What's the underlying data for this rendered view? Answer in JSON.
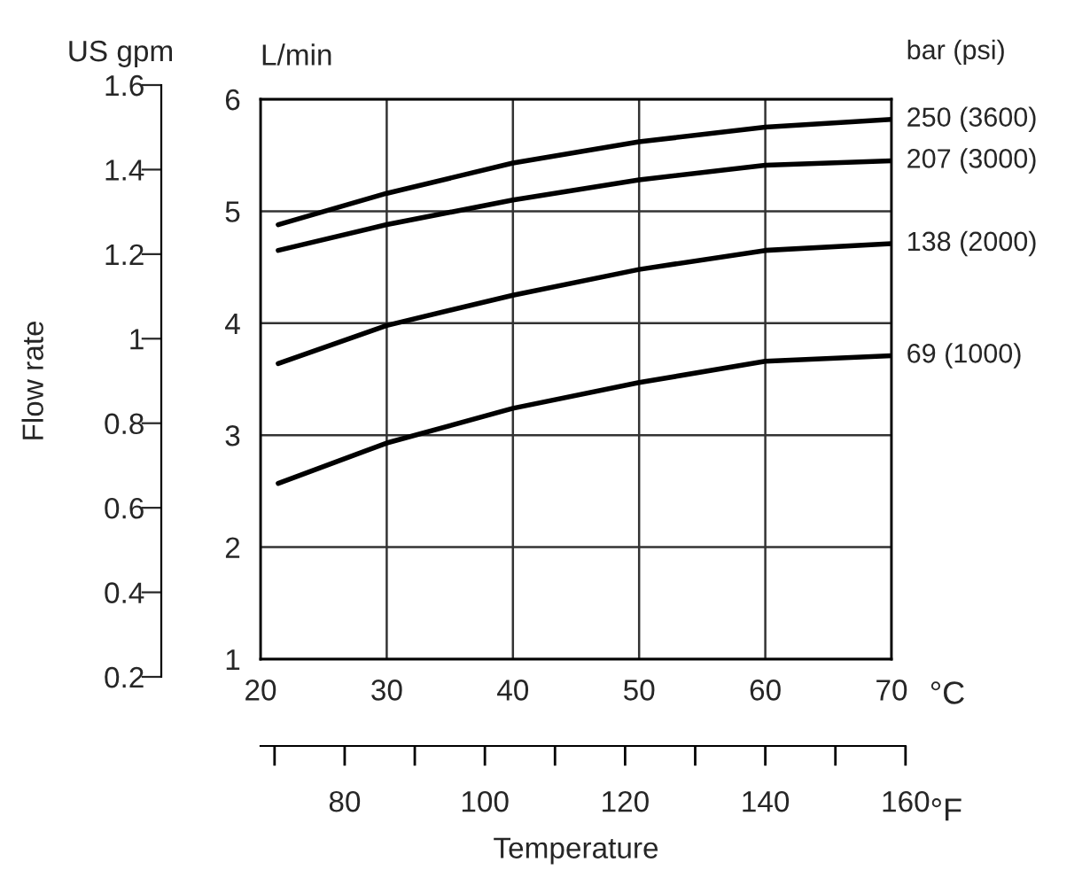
{
  "chart_data": {
    "type": "line",
    "xlabel": "°C",
    "x2label": "°F",
    "ylabel": "L/min",
    "y2label": "US gpm",
    "legend_title": "bar (psi)",
    "annotations": [
      "Flow rate",
      "Temperature"
    ],
    "x": [
      21.4,
      30,
      40,
      50,
      60,
      70
    ],
    "series": [
      {
        "name": "250 (3600)",
        "color": "#000000",
        "values": [
          4.88,
          5.16,
          5.43,
          5.62,
          5.75,
          5.82
        ]
      },
      {
        "name": "207 (3000)",
        "color": "#000000",
        "values": [
          4.65,
          4.88,
          5.1,
          5.28,
          5.41,
          5.45
        ]
      },
      {
        "name": "138 (2000)",
        "color": "#000000",
        "values": [
          3.64,
          3.98,
          4.25,
          4.48,
          4.65,
          4.71
        ]
      },
      {
        "name": "69 (1000)",
        "color": "#000000",
        "values": [
          2.57,
          2.93,
          3.24,
          3.47,
          3.66,
          3.71
        ]
      }
    ],
    "xlim": [
      20,
      70
    ],
    "xticks": [
      20,
      30,
      40,
      50,
      60,
      70
    ],
    "ylim": [
      1,
      6
    ],
    "yticks": [
      1,
      2,
      3,
      4,
      5,
      6
    ],
    "x2lim": [
      68,
      160
    ],
    "x2ticks": [
      {
        "value": 70,
        "label": null
      },
      80,
      {
        "value": 90,
        "label": null
      },
      100,
      {
        "value": 110,
        "label": null
      },
      120,
      {
        "value": 130,
        "label": null
      },
      140,
      {
        "value": 150,
        "label": null
      },
      160
    ],
    "y2lim": [
      0.2,
      1.6
    ],
    "y2ticks": [
      0.2,
      0.4,
      0.6,
      0.8,
      1,
      1.2,
      1.4,
      1.6
    ],
    "grid": true,
    "legend": "right",
    "marker": "none",
    "line_style": "solid"
  }
}
